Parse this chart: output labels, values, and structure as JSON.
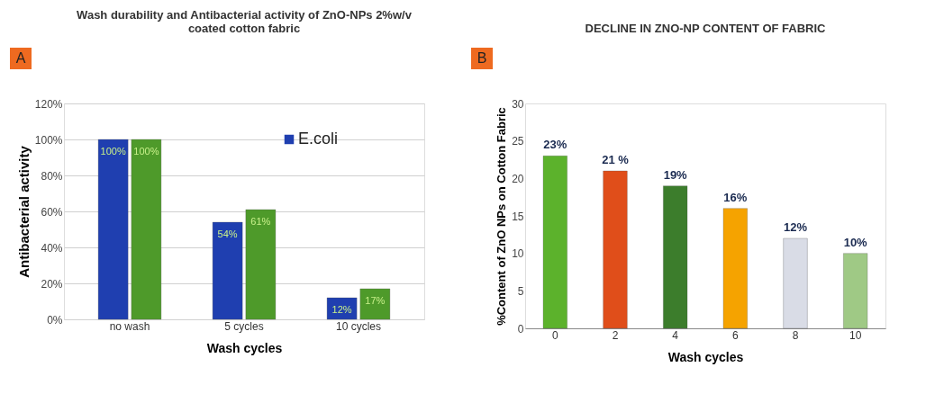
{
  "chart_data": [
    {
      "type": "bar",
      "title": "Wash durability and Antibacterial activity of ZnO-NPs 2%w/v coated cotton fabric",
      "xlabel": "Wash cycles",
      "ylabel": "Antibacterial activity",
      "categories": [
        "no wash",
        "5 cycles",
        "10 cycles"
      ],
      "series": [
        {
          "name": "E.coli",
          "color": "#1f3fb0",
          "values": [
            100,
            54,
            12
          ],
          "value_labels": [
            "100%",
            "54%",
            "12%"
          ]
        },
        {
          "color": "#4e9a2a",
          "values": [
            100,
            61,
            17
          ],
          "value_labels": [
            "100%",
            "61%",
            "17%"
          ]
        }
      ],
      "ylim": [
        0,
        120
      ],
      "yticks": [
        {
          "value": 0,
          "label": "0%"
        },
        {
          "value": 20,
          "label": "20%"
        },
        {
          "value": 40,
          "label": "40%"
        },
        {
          "value": 60,
          "label": "60%"
        },
        {
          "value": 80,
          "label": "80%"
        },
        {
          "value": 100,
          "label": "100%"
        },
        {
          "value": 120,
          "label": "120%"
        }
      ],
      "grid": "y",
      "legend": "top right",
      "annotations": [
        "A"
      ]
    },
    {
      "type": "bar",
      "title": "DECLINE IN ZNO-NP CONTENT OF FABRIC",
      "xlabel": "Wash cycles",
      "ylabel": "%Content of ZnO NPs on Cotton Fabric",
      "categories": [
        "0",
        "2",
        "4",
        "6",
        "8",
        "10"
      ],
      "values": [
        23,
        21,
        19,
        16,
        12,
        10
      ],
      "value_labels": [
        "23%",
        "21 %",
        "19%",
        "16%",
        "12%",
        "10%"
      ],
      "colors": [
        "#5cb22c",
        "#e04e1a",
        "#3c7d2c",
        "#f5a300",
        "#d9dce6",
        "#9fc985"
      ],
      "ylim": [
        0,
        30
      ],
      "yticks": [
        0,
        5,
        10,
        15,
        20,
        25,
        30
      ],
      "grid": false,
      "legend": false,
      "annotations": [
        "B"
      ]
    }
  ]
}
